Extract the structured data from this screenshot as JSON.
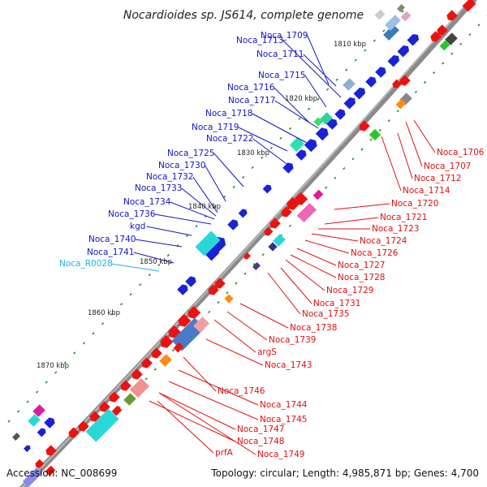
{
  "title": "Nocardioides sp. JS614, complete genome",
  "footer": {
    "accession": "Accession: NC_008699",
    "summary": "Topology: circular; Length: 4,985,871 bp; Genes: 4,700"
  },
  "colors": {
    "backbone": "#8a8a8a",
    "plus_label": "#1414c8",
    "minus_label": "#e01010",
    "rna_label": "#1eb4e6",
    "tick": "#1e8c1e"
  },
  "kbp_labels": [
    "1810 kbp",
    "1820 kbp",
    "1830 kbp",
    "1840 kbp",
    "1850 kbp",
    "1860 kbp",
    "1870 kbp"
  ],
  "plus_genes": [
    "Noca_1709",
    "Noca_1713",
    "Noca_1711",
    "Noca_1715",
    "Noca_1716",
    "Noca_1717",
    "Noca_1718",
    "Noca_1719",
    "Noca_1722",
    "Noca_1725",
    "Noca_1730",
    "Noca_1732",
    "Noca_1733",
    "Noca_1734",
    "Noca_1736",
    "kgd",
    "Noca_1740",
    "Noca_1741"
  ],
  "rna_genes": [
    "Noca_R0028"
  ],
  "minus_genes": [
    "Noca_1706",
    "Noca_1707",
    "Noca_1712",
    "Noca_1714",
    "Noca_1720",
    "Noca_1721",
    "Noca_1723",
    "Noca_1724",
    "Noca_1726",
    "Noca_1727",
    "Noca_1728",
    "Noca_1729",
    "Noca_1731",
    "Noca_1735",
    "Noca_1738",
    "Noca_1739",
    "argS",
    "Noca_1743",
    "Noca_1746",
    "Noca_1744",
    "Noca_1745",
    "Noca_1747",
    "Noca_1748",
    "prfA",
    "Noca_1749"
  ]
}
